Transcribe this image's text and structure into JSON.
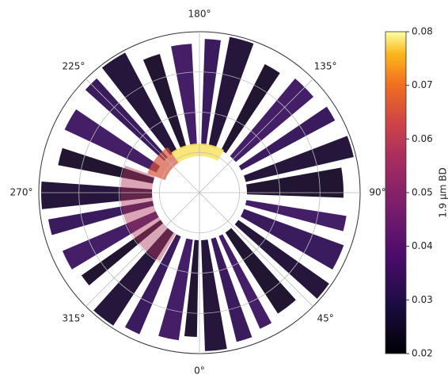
{
  "chart_data": {
    "type": "polar-map",
    "thetaticks": [
      {
        "value": 0,
        "label": "0°"
      },
      {
        "value": 45,
        "label": "45°"
      },
      {
        "value": 90,
        "label": "90°"
      },
      {
        "value": 135,
        "label": "135°"
      },
      {
        "value": 180,
        "label": "180°"
      },
      {
        "value": 225,
        "label": "225°"
      },
      {
        "value": 270,
        "label": "270°"
      },
      {
        "value": 315,
        "label": "315°"
      }
    ],
    "grid": true,
    "colorbar_label": "1.9 µm BD",
    "colormap": "inferno",
    "clim": [
      0.02,
      0.08
    ],
    "cticks": [
      0.02,
      0.03,
      0.04,
      0.05,
      0.06,
      0.07,
      0.08
    ]
  }
}
